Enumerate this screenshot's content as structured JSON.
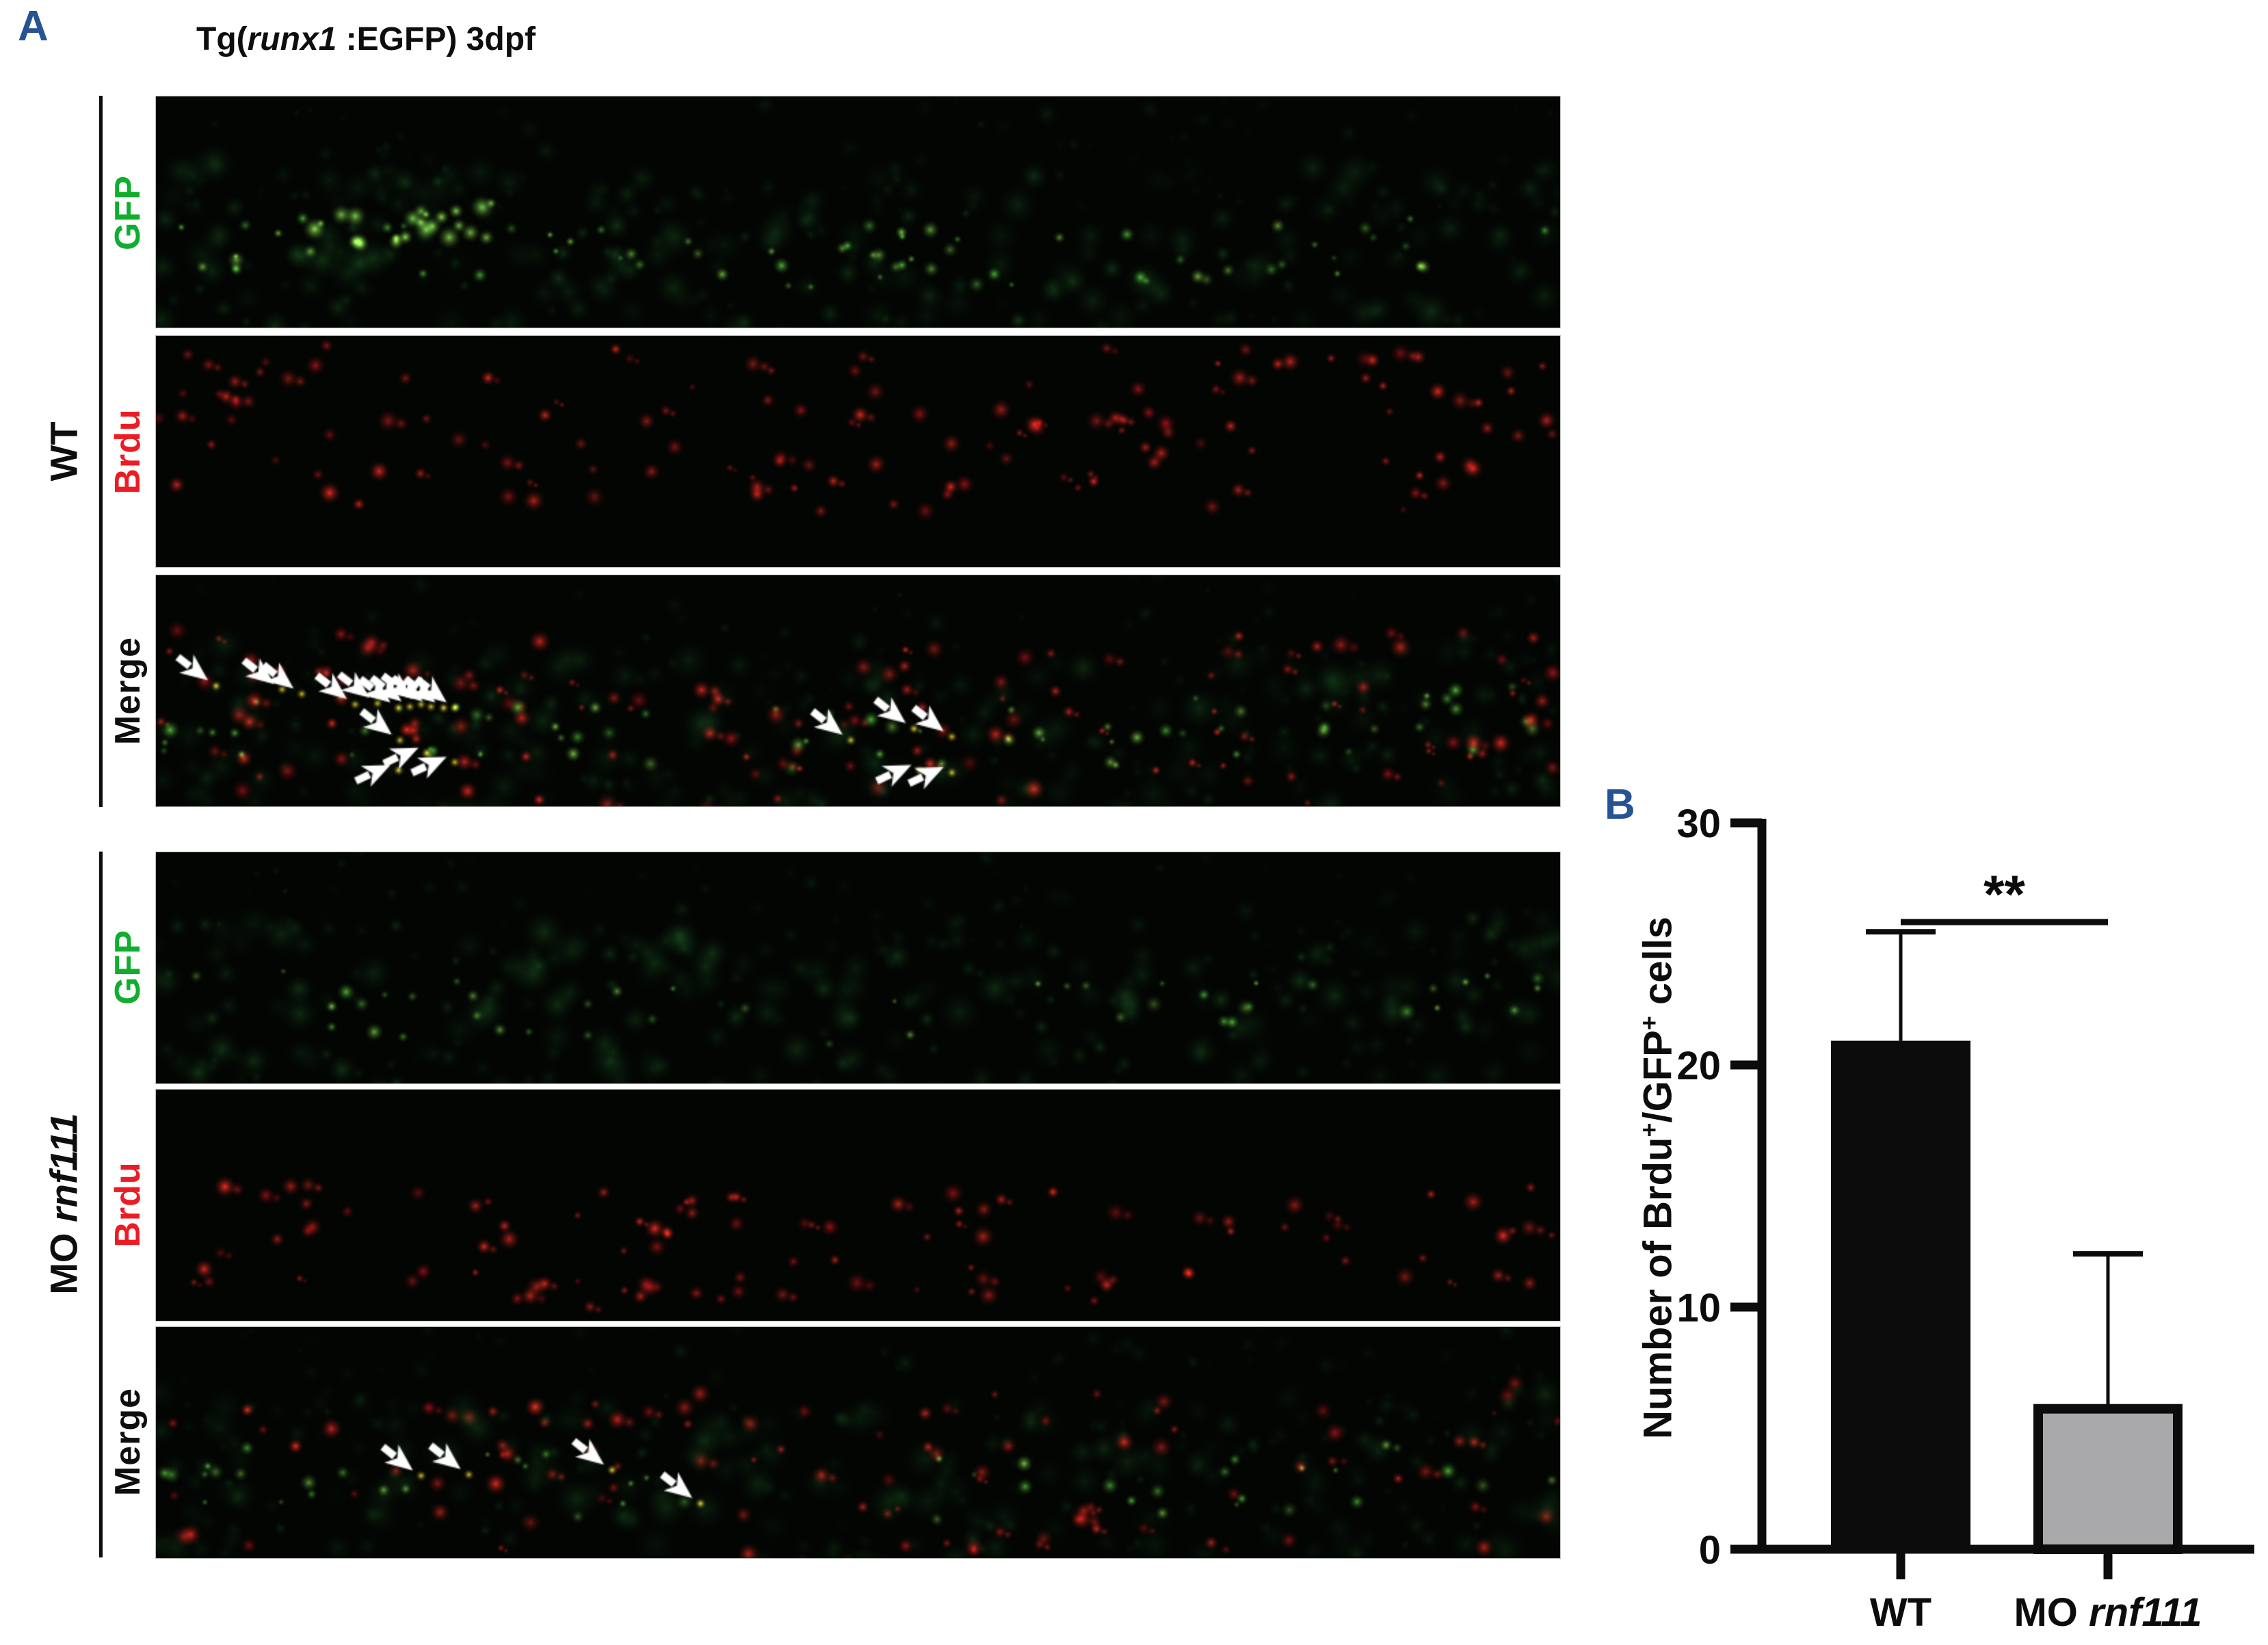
{
  "figure": {
    "panel_a_letter": "A",
    "panel_b_letter": "B",
    "label_color": "#265394",
    "background": "#ffffff"
  },
  "panel_a": {
    "title_parts": [
      "Tg(",
      "runx1",
      " :EGFP) 3dpf"
    ],
    "channels": {
      "gfp": "GFP",
      "brdu": "Brdu",
      "merge": "Merge"
    },
    "channel_colors": {
      "gfp": "#0fae2f",
      "brdu": "#ec1c24",
      "merge": "#0e0e0e"
    },
    "groups": [
      {
        "id": "wt",
        "label_text": "WT",
        "label_italic": "",
        "merge_arrows": [
          [
            0.037,
            0.455,
            38
          ],
          [
            0.084,
            0.47,
            38
          ],
          [
            0.098,
            0.49,
            38
          ],
          [
            0.136,
            0.535,
            38
          ],
          [
            0.152,
            0.53,
            38
          ],
          [
            0.167,
            0.55,
            38
          ],
          [
            0.175,
            0.545,
            38
          ],
          [
            0.183,
            0.535,
            38
          ],
          [
            0.19,
            0.545,
            38
          ],
          [
            0.199,
            0.55,
            38
          ],
          [
            0.207,
            0.55,
            38
          ],
          [
            0.168,
            0.69,
            38
          ],
          [
            0.187,
            0.745,
            -25
          ],
          [
            0.167,
            0.82,
            -25
          ],
          [
            0.207,
            0.785,
            -25
          ],
          [
            0.489,
            0.69,
            38
          ],
          [
            0.534,
            0.64,
            38
          ],
          [
            0.561,
            0.675,
            38
          ],
          [
            0.538,
            0.82,
            -25
          ],
          [
            0.561,
            0.83,
            -25
          ]
        ]
      },
      {
        "id": "mo",
        "label_text": "MO ",
        "label_italic": "rnf111",
        "merge_arrows": [
          [
            0.183,
            0.62,
            38
          ],
          [
            0.217,
            0.615,
            38
          ],
          [
            0.319,
            0.595,
            38
          ],
          [
            0.382,
            0.74,
            38
          ]
        ]
      }
    ],
    "micrograph_palette": {
      "green_dim": [
        "#123f18",
        "#1d672a",
        "#2d8f3a"
      ],
      "green_bright": [
        "#5bd23f",
        "#8ce24f"
      ],
      "red": [
        "#a50f16",
        "#e0231f",
        "#ff2a21"
      ],
      "yellow": [
        "#e5cf2e",
        "#ffe83e"
      ],
      "arrow_color": "#ffffff"
    }
  },
  "chart_data": {
    "type": "bar",
    "title": "",
    "xlabel": "",
    "ylabel": "Number of Brdu+/GFP+ cells",
    "ylabel_rich": [
      {
        "t": "Number of Brdu"
      },
      {
        "t": "+",
        "sup": true
      },
      {
        "t": "/GFP"
      },
      {
        "t": "+",
        "sup": true
      },
      {
        "t": " cells"
      }
    ],
    "categories": [
      {
        "text": "WT",
        "italic": ""
      },
      {
        "text": "MO ",
        "italic": "rnf111"
      }
    ],
    "values": [
      21,
      5.8
    ],
    "error_plus": [
      4.5,
      6.4
    ],
    "bar_colors": [
      "#0c0c0c",
      "#a9a9ab"
    ],
    "bar_border_color": "#0c0c0c",
    "axis_color": "#0c0c0c",
    "ylim": [
      0,
      30
    ],
    "yticks": [
      0,
      10,
      20,
      30
    ],
    "grid": false,
    "legend": null,
    "significance": {
      "label": "**",
      "between": [
        "WT",
        "MO rnf111"
      ],
      "line_y": 25.9
    }
  }
}
